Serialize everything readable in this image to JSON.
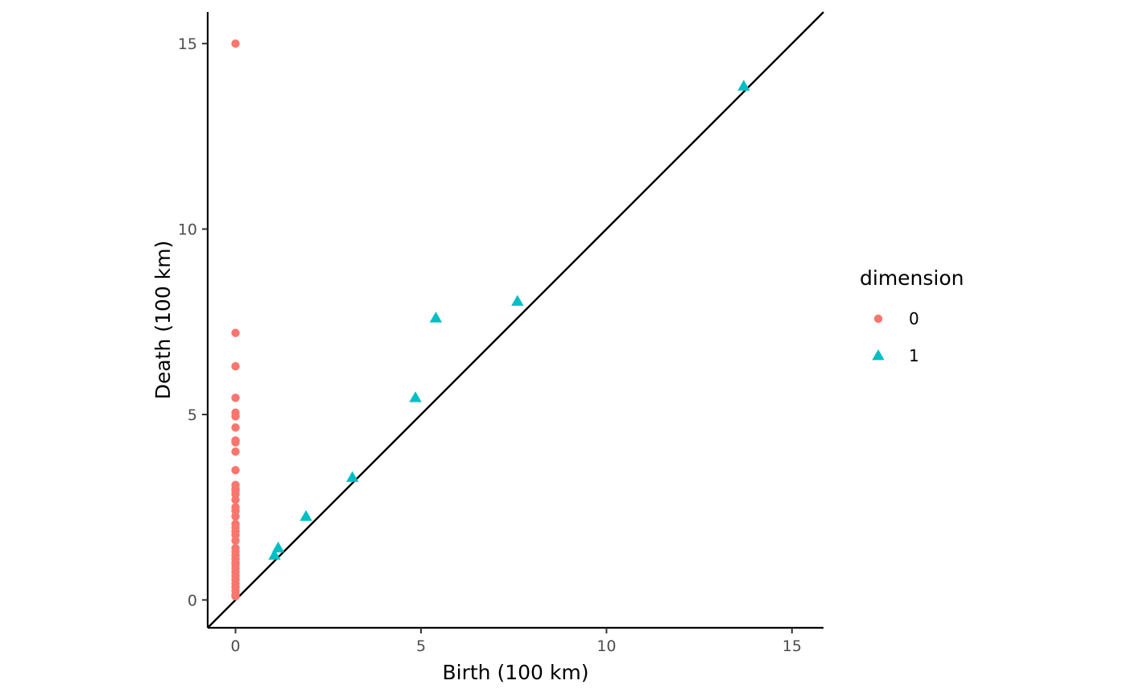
{
  "chart_data": {
    "type": "scatter",
    "xlabel": "Birth (100 km)",
    "ylabel": "Death (100 km)",
    "xlim": [
      -0.75,
      15.85
    ],
    "ylim": [
      -0.75,
      15.85
    ],
    "x_ticks": [
      0,
      5,
      10,
      15
    ],
    "y_ticks": [
      0,
      5,
      10,
      15
    ],
    "grid": false,
    "diagonal_line": true,
    "legend": {
      "title": "dimension",
      "position": "right",
      "entries": [
        {
          "label": "0",
          "shape": "circle",
          "color": "#F8766D"
        },
        {
          "label": "1",
          "shape": "triangle",
          "color": "#00BFC4"
        }
      ]
    },
    "series": [
      {
        "name": "0",
        "shape": "circle",
        "color": "#F8766D",
        "points": [
          [
            0,
            15.0
          ],
          [
            0,
            7.2
          ],
          [
            0,
            6.3
          ],
          [
            0,
            5.45
          ],
          [
            0,
            5.05
          ],
          [
            0,
            4.95
          ],
          [
            0,
            4.65
          ],
          [
            0,
            4.3
          ],
          [
            0,
            4.25
          ],
          [
            0,
            4.0
          ],
          [
            0,
            3.5
          ],
          [
            0,
            3.1
          ],
          [
            0,
            3.0
          ],
          [
            0,
            2.95
          ],
          [
            0,
            2.85
          ],
          [
            0,
            2.7
          ],
          [
            0,
            2.5
          ],
          [
            0,
            2.4
          ],
          [
            0,
            2.25
          ],
          [
            0,
            2.05
          ],
          [
            0,
            1.95
          ],
          [
            0,
            1.85
          ],
          [
            0,
            1.75
          ],
          [
            0,
            1.6
          ],
          [
            0,
            1.4
          ],
          [
            0,
            1.3
          ],
          [
            0,
            1.2
          ],
          [
            0,
            1.1
          ],
          [
            0,
            1.0
          ],
          [
            0,
            0.95
          ],
          [
            0,
            0.85
          ],
          [
            0,
            0.75
          ],
          [
            0,
            0.65
          ],
          [
            0,
            0.55
          ],
          [
            0,
            0.45
          ],
          [
            0,
            0.35
          ],
          [
            0,
            0.25
          ],
          [
            0,
            0.15
          ],
          [
            0,
            0.1
          ]
        ]
      },
      {
        "name": "1",
        "shape": "triangle",
        "color": "#00BFC4",
        "points": [
          [
            13.7,
            13.85
          ],
          [
            7.6,
            8.05
          ],
          [
            5.4,
            7.6
          ],
          [
            4.85,
            5.45
          ],
          [
            3.15,
            3.3
          ],
          [
            1.9,
            2.25
          ],
          [
            1.15,
            1.4
          ],
          [
            1.05,
            1.2
          ]
        ]
      }
    ]
  }
}
